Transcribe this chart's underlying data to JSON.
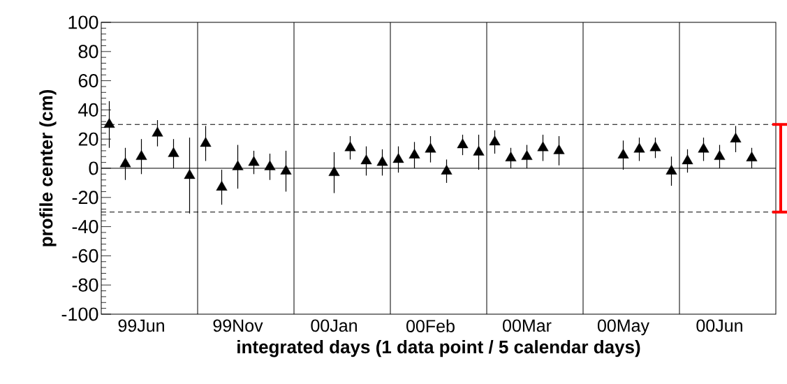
{
  "chart_data": {
    "type": "scatter",
    "xlabel": "integrated days (1 data point / 5 calendar days)",
    "ylabel": "profile center (cm)",
    "categories": [
      null,
      null,
      "99Jun",
      null,
      null,
      null,
      null,
      null,
      "99Nov",
      null,
      null,
      null,
      null,
      null,
      "00Jan",
      null,
      null,
      null,
      null,
      null,
      "00Feb",
      null,
      null,
      null,
      null,
      null,
      "00Mar",
      null,
      null,
      null,
      null,
      null,
      "00May",
      null,
      null,
      null,
      null,
      null,
      "00Jun",
      null,
      null,
      null
    ],
    "ylim": [
      -100,
      100
    ],
    "yticks": [
      -100,
      -80,
      -60,
      -40,
      -20,
      0,
      20,
      40,
      60,
      80,
      100
    ],
    "marker": "triangle",
    "grid": "x",
    "series": [
      {
        "color": "#000000",
        "values": [
          30,
          3,
          8,
          24,
          10,
          -5,
          17,
          -13,
          1,
          4,
          1,
          -2,
          null,
          null,
          -3,
          14,
          5,
          4,
          6,
          9,
          13,
          -2,
          16,
          11,
          18,
          7,
          8,
          14,
          12,
          null,
          null,
          null,
          9,
          13,
          14,
          -2,
          5,
          13,
          8,
          20,
          7,
          null
        ],
        "errors": [
          16,
          11,
          12,
          9,
          10,
          26,
          12,
          12,
          15,
          8,
          9,
          14,
          null,
          null,
          14,
          8,
          10,
          9,
          9,
          9,
          9,
          8,
          7,
          12,
          8,
          7,
          8,
          9,
          10,
          null,
          null,
          null,
          10,
          8,
          7,
          10,
          8,
          8,
          8,
          9,
          7,
          null
        ]
      }
    ],
    "ref_lines": [
      {
        "axis": "y",
        "value": 30,
        "line_style": "dashed",
        "color": "#000000"
      },
      {
        "axis": "y",
        "value": -30,
        "line_style": "dashed",
        "color": "#000000"
      },
      {
        "axis": "y",
        "value": 0,
        "line_style": "solid",
        "color": "#000000"
      }
    ]
  }
}
